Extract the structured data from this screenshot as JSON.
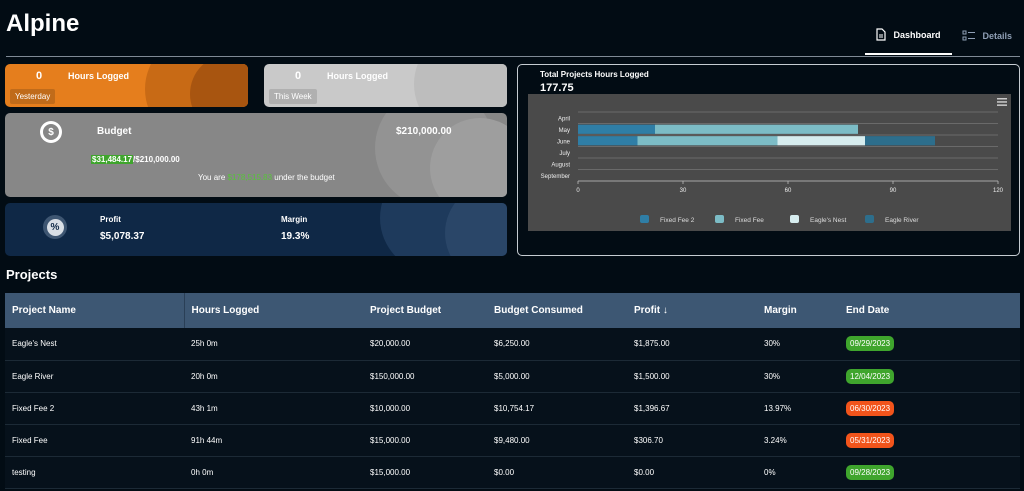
{
  "app": {
    "title": "Alpine"
  },
  "tabs": [
    {
      "label": "Dashboard",
      "icon": "document-icon",
      "active": true
    },
    {
      "label": "Details",
      "icon": "list-icon",
      "active": false
    }
  ],
  "cards": {
    "yesterday": {
      "value": "0",
      "label": "Hours Logged",
      "chip": "Yesterday",
      "color": "#e57e1d"
    },
    "this_week": {
      "value": "0",
      "label": "Hours Logged",
      "chip": "This Week",
      "color": "#c9c9c9"
    },
    "budget": {
      "icon": "dollar-icon",
      "label": "Budget",
      "total": "$210,000.00",
      "consumed": "$31,484.17",
      "consumed_total": "/$210,000.00",
      "note_prefix": "You are",
      "note_amount": "$178,515.83",
      "note_suffix": "under the budget"
    },
    "profit": {
      "icon": "percent-icon",
      "profit_label": "Profit",
      "profit_value": "$5,078.37",
      "margin_label": "Margin",
      "margin_value": "19.3%"
    }
  },
  "chart": {
    "title": "Total Projects Hours Logged",
    "total": "177.75"
  },
  "chart_data": {
    "type": "bar",
    "orientation": "horizontal",
    "stacked": true,
    "categories": [
      "April",
      "May",
      "June",
      "July",
      "August",
      "September"
    ],
    "series": [
      {
        "name": "Fixed Fee 2",
        "color": "#2f7ea6",
        "values": [
          0,
          22,
          0,
          0,
          0,
          0
        ]
      },
      {
        "name": "Fixed Fee",
        "color": "#7cbcc6",
        "values": [
          0,
          58,
          0,
          0,
          0,
          0
        ]
      },
      {
        "name": "Eagle's Nest",
        "color": "#d6ecee",
        "values": [
          0,
          0,
          0,
          0,
          0,
          0
        ]
      },
      {
        "name": "Eagle River",
        "color": "#2d6e8c",
        "values": [
          0,
          0,
          0,
          0,
          0,
          0
        ]
      }
    ],
    "june_segments": [
      {
        "series": "Fixed Fee 2",
        "value": 17
      },
      {
        "series": "Fixed Fee",
        "value": 40
      },
      {
        "series": "Eagle's Nest",
        "value": 25
      },
      {
        "series": "Eagle River",
        "value": 20
      }
    ],
    "xlim": [
      0,
      120
    ],
    "xticks": [
      "0",
      "30",
      "60",
      "90",
      "120"
    ],
    "grid": true,
    "legend": "bottom"
  },
  "projects": {
    "title": "Projects",
    "columns": [
      "Project Name",
      "Hours Logged",
      "Project Budget",
      "Budget Consumed",
      "Profit",
      "Margin",
      "End Date"
    ],
    "sort_icon": "arrow-down-icon",
    "rows": [
      {
        "name": "Eagle's Nest",
        "hours": "25h 0m",
        "budget": "$20,000.00",
        "consumed": "$6,250.00",
        "profit": "$1,875.00",
        "margin": "30%",
        "end": "09/29/2023",
        "status_color": "#3fa52d"
      },
      {
        "name": "Eagle River",
        "hours": "20h 0m",
        "budget": "$150,000.00",
        "consumed": "$5,000.00",
        "profit": "$1,500.00",
        "margin": "30%",
        "end": "12/04/2023",
        "status_color": "#3fa52d"
      },
      {
        "name": "Fixed Fee 2",
        "hours": "43h 1m",
        "budget": "$10,000.00",
        "consumed": "$10,754.17",
        "profit": "$1,396.67",
        "margin": "13.97%",
        "end": "06/30/2023",
        "status_color": "#f2541b"
      },
      {
        "name": "Fixed Fee",
        "hours": "91h 44m",
        "budget": "$15,000.00",
        "consumed": "$9,480.00",
        "profit": "$306.70",
        "margin": "3.24%",
        "end": "05/31/2023",
        "status_color": "#f2541b"
      },
      {
        "name": "testing",
        "hours": "0h 0m",
        "budget": "$15,000.00",
        "consumed": "$0.00",
        "profit": "$0.00",
        "margin": "0%",
        "end": "09/28/2023",
        "status_color": "#3fa52d"
      }
    ]
  }
}
